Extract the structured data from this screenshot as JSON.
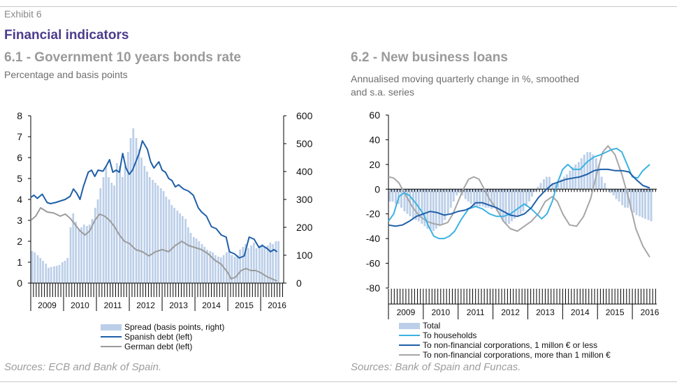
{
  "header": {
    "exhibit": "Exhibit 6",
    "title": "Financial indicators"
  },
  "colors": {
    "title": "#4b3c8c",
    "spread_bars": "#bccfe9",
    "spanish": "#1f5fa8",
    "german": "#9b9b9b",
    "households": "#3bb2e3",
    "nfc_small": "#1f5fa8",
    "nfc_large": "#a6a6a6"
  },
  "chart_data": [
    {
      "type": "line",
      "title": "6.1 - Government 10 years bonds rate",
      "subtitle": "Percentage and basis points",
      "years": [
        "2009",
        "2010",
        "2011",
        "2012",
        "2013",
        "2014",
        "2015",
        "2016"
      ],
      "x_range": [
        2009.0,
        2016.7
      ],
      "y_left": {
        "ticks": [
          "0",
          "1",
          "2",
          "3",
          "4",
          "5",
          "6",
          "7",
          "8"
        ],
        "ylim": [
          0,
          8
        ]
      },
      "y_right": {
        "ticks": [
          "0",
          "100",
          "200",
          "300",
          "400",
          "500",
          "600"
        ],
        "ylim": [
          0,
          600
        ]
      },
      "series": [
        {
          "name": "Spread (basis points, right)",
          "kind": "bar",
          "axis": "right",
          "x": [
            2009.0,
            2009.08,
            2009.17,
            2009.25,
            2009.33,
            2009.42,
            2009.5,
            2009.58,
            2009.67,
            2009.75,
            2009.83,
            2009.92,
            2010.0,
            2010.08,
            2010.17,
            2010.25,
            2010.33,
            2010.42,
            2010.5,
            2010.58,
            2010.67,
            2010.75,
            2010.83,
            2010.92,
            2011.0,
            2011.08,
            2011.17,
            2011.25,
            2011.33,
            2011.42,
            2011.5,
            2011.58,
            2011.67,
            2011.75,
            2011.83,
            2011.92,
            2012.0,
            2012.08,
            2012.17,
            2012.25,
            2012.33,
            2012.42,
            2012.5,
            2012.58,
            2012.67,
            2012.75,
            2012.83,
            2012.92,
            2013.0,
            2013.08,
            2013.17,
            2013.25,
            2013.33,
            2013.42,
            2013.5,
            2013.58,
            2013.67,
            2013.75,
            2013.83,
            2013.92,
            2014.0,
            2014.08,
            2014.17,
            2014.25,
            2014.33,
            2014.42,
            2014.5,
            2014.58,
            2014.67,
            2014.75,
            2014.83,
            2014.92,
            2015.0,
            2015.08,
            2015.17,
            2015.25,
            2015.33,
            2015.42,
            2015.5,
            2015.58,
            2015.67,
            2015.75,
            2015.83,
            2015.92,
            2016.0,
            2016.08,
            2016.17,
            2016.25,
            2016.33,
            2016.42,
            2016.5
          ],
          "values": [
            115,
            110,
            100,
            90,
            80,
            70,
            55,
            58,
            60,
            62,
            65,
            75,
            80,
            90,
            200,
            250,
            220,
            195,
            200,
            210,
            205,
            210,
            230,
            270,
            300,
            340,
            380,
            420,
            380,
            360,
            350,
            430,
            420,
            380,
            420,
            470,
            520,
            555,
            520,
            480,
            450,
            420,
            400,
            380,
            370,
            360,
            350,
            340,
            330,
            310,
            300,
            280,
            270,
            260,
            250,
            240,
            230,
            200,
            180,
            165,
            160,
            150,
            140,
            130,
            120,
            115,
            110,
            100,
            95,
            92,
            100,
            110,
            115,
            100,
            95,
            100,
            120,
            130,
            140,
            125,
            135,
            145,
            125,
            135,
            140,
            130,
            135,
            145,
            140,
            150,
            150
          ]
        },
        {
          "name": "Spanish debt (left)",
          "kind": "line",
          "axis": "left",
          "x": [
            2009.0,
            2009.1,
            2009.2,
            2009.35,
            2009.5,
            2009.6,
            2009.75,
            2009.95,
            2010.05,
            2010.2,
            2010.3,
            2010.4,
            2010.5,
            2010.6,
            2010.75,
            2010.85,
            2010.95,
            2011.05,
            2011.2,
            2011.3,
            2011.4,
            2011.5,
            2011.6,
            2011.7,
            2011.8,
            2011.9,
            2012.0,
            2012.1,
            2012.2,
            2012.3,
            2012.4,
            2012.55,
            2012.65,
            2012.75,
            2012.9,
            2013.0,
            2013.1,
            2013.2,
            2013.3,
            2013.4,
            2013.5,
            2013.65,
            2013.8,
            2013.95,
            2014.1,
            2014.2,
            2014.35,
            2014.5,
            2014.65,
            2014.8,
            2014.95,
            2015.05,
            2015.2,
            2015.35,
            2015.5,
            2015.65,
            2015.8,
            2015.95,
            2016.05,
            2016.2,
            2016.3,
            2016.4,
            2016.5
          ],
          "values": [
            4.1,
            4.2,
            4.05,
            4.25,
            3.85,
            3.8,
            3.85,
            3.95,
            4.0,
            4.15,
            4.5,
            4.3,
            4.0,
            4.6,
            5.3,
            5.4,
            5.1,
            5.4,
            5.35,
            5.6,
            5.9,
            5.3,
            5.4,
            5.3,
            6.2,
            5.5,
            5.2,
            5.4,
            5.8,
            6.2,
            6.8,
            6.4,
            5.8,
            5.5,
            5.8,
            5.4,
            5.3,
            5.0,
            4.9,
            4.6,
            4.7,
            4.5,
            4.4,
            4.2,
            3.6,
            3.4,
            3.2,
            2.7,
            2.6,
            2.3,
            2.2,
            1.5,
            1.4,
            1.2,
            1.3,
            2.2,
            2.1,
            1.7,
            1.8,
            1.65,
            1.5,
            1.6,
            1.5
          ]
        },
        {
          "name": "German debt (left)",
          "kind": "line",
          "axis": "left",
          "x": [
            2009.0,
            2009.15,
            2009.3,
            2009.5,
            2009.7,
            2009.9,
            2010.05,
            2010.2,
            2010.35,
            2010.5,
            2010.65,
            2010.8,
            2010.95,
            2011.1,
            2011.25,
            2011.4,
            2011.55,
            2011.7,
            2011.85,
            2012.0,
            2012.2,
            2012.4,
            2012.6,
            2012.8,
            2013.0,
            2013.2,
            2013.4,
            2013.6,
            2013.8,
            2014.0,
            2014.2,
            2014.4,
            2014.6,
            2014.8,
            2015.0,
            2015.1,
            2015.25,
            2015.4,
            2015.55,
            2015.7,
            2015.85,
            2016.0,
            2016.2,
            2016.35,
            2016.5
          ],
          "values": [
            3.0,
            3.2,
            3.6,
            3.4,
            3.35,
            3.2,
            3.3,
            3.1,
            2.8,
            2.5,
            2.3,
            2.5,
            3.0,
            3.3,
            3.2,
            3.0,
            2.7,
            2.3,
            2.0,
            1.9,
            1.6,
            1.5,
            1.3,
            1.5,
            1.6,
            1.5,
            1.8,
            2.0,
            1.8,
            1.7,
            1.6,
            1.4,
            1.1,
            0.9,
            0.5,
            0.2,
            0.3,
            0.6,
            0.7,
            0.6,
            0.6,
            0.5,
            0.3,
            0.2,
            0.1
          ]
        }
      ],
      "source": "Sources: ECB and Bank of Spain."
    },
    {
      "type": "line",
      "title": "6.2 - New business loans",
      "subtitle_lines": [
        "Annualised moving quarterly change in %, smoothed",
        "and s.a. series"
      ],
      "years": [
        "2009",
        "2010",
        "2011",
        "2012",
        "2013",
        "2014",
        "2015",
        "2016"
      ],
      "x_range": [
        2009.0,
        2016.7
      ],
      "y": {
        "ticks": [
          "60",
          "40",
          "20",
          "0",
          "-20",
          "-40",
          "-60",
          "-80"
        ],
        "ylim": [
          -80,
          60
        ]
      },
      "series": [
        {
          "name": "Total",
          "kind": "bar",
          "x": [
            2009.0,
            2009.08,
            2009.17,
            2009.25,
            2009.33,
            2009.42,
            2009.5,
            2009.58,
            2009.67,
            2009.75,
            2009.83,
            2009.92,
            2010.0,
            2010.08,
            2010.17,
            2010.25,
            2010.33,
            2010.42,
            2010.5,
            2010.58,
            2010.67,
            2010.75,
            2010.83,
            2010.92,
            2011.0,
            2011.08,
            2011.17,
            2011.25,
            2011.33,
            2011.42,
            2011.5,
            2011.58,
            2011.67,
            2011.75,
            2011.83,
            2011.92,
            2012.0,
            2012.08,
            2012.17,
            2012.25,
            2012.33,
            2012.42,
            2012.5,
            2012.58,
            2012.67,
            2012.75,
            2012.83,
            2012.92,
            2013.0,
            2013.08,
            2013.17,
            2013.25,
            2013.33,
            2013.42,
            2013.5,
            2013.58,
            2013.67,
            2013.75,
            2013.83,
            2013.92,
            2014.0,
            2014.08,
            2014.17,
            2014.25,
            2014.33,
            2014.42,
            2014.5,
            2014.58,
            2014.67,
            2014.75,
            2014.83,
            2014.92,
            2015.0,
            2015.08,
            2015.17,
            2015.25,
            2015.33,
            2015.42,
            2015.5,
            2015.58,
            2015.67,
            2015.75,
            2015.83,
            2015.92,
            2016.0,
            2016.08,
            2016.17,
            2016.25,
            2016.33,
            2016.42,
            2016.5
          ],
          "values": [
            -10,
            -10,
            -12,
            -12,
            -15,
            -18,
            -20,
            -22,
            -24,
            -25,
            -26,
            -28,
            -30,
            -32,
            -33,
            -34,
            -32,
            -30,
            -28,
            -25,
            -20,
            -15,
            -10,
            -5,
            -3,
            -5,
            -8,
            -10,
            -12,
            -14,
            -14,
            -14,
            -14,
            -15,
            -15,
            -16,
            -15,
            -18,
            -22,
            -26,
            -28,
            -28,
            -26,
            -24,
            -22,
            -20,
            -18,
            -14,
            -10,
            -6,
            -2,
            2,
            5,
            8,
            10,
            10,
            5,
            4,
            5,
            8,
            10,
            12,
            15,
            18,
            20,
            22,
            25,
            28,
            30,
            30,
            28,
            25,
            20,
            10,
            5,
            0,
            -3,
            -5,
            -8,
            -10,
            -13,
            -15,
            -15,
            -17,
            -19,
            -21,
            -22,
            -23,
            -24,
            -25,
            -26
          ]
        },
        {
          "name": "To households",
          "kind": "line",
          "x": [
            2009.0,
            2009.15,
            2009.3,
            2009.45,
            2009.6,
            2009.8,
            2010.0,
            2010.15,
            2010.3,
            2010.45,
            2010.6,
            2010.75,
            2010.9,
            2011.1,
            2011.3,
            2011.5,
            2011.7,
            2011.9,
            2012.1,
            2012.3,
            2012.5,
            2012.7,
            2012.9,
            2013.1,
            2013.25,
            2013.4,
            2013.55,
            2013.7,
            2013.85,
            2014.0,
            2014.15,
            2014.3,
            2014.5,
            2014.7,
            2014.9,
            2015.1,
            2015.25,
            2015.4,
            2015.55,
            2015.7,
            2015.85,
            2016.0,
            2016.15,
            2016.3,
            2016.5
          ],
          "values": [
            -26,
            -20,
            -6,
            -3,
            -5,
            -12,
            -20,
            -30,
            -38,
            -40,
            -40,
            -38,
            -34,
            -24,
            -16,
            -14,
            -16,
            -20,
            -22,
            -22,
            -20,
            -16,
            -12,
            -16,
            -20,
            -24,
            -20,
            -10,
            5,
            16,
            20,
            16,
            16,
            22,
            26,
            28,
            30,
            32,
            33,
            30,
            20,
            10,
            9,
            15,
            20
          ]
        },
        {
          "name": "To non-financial corporations, 1 millon € or less",
          "kind": "line",
          "x": [
            2009.0,
            2009.2,
            2009.4,
            2009.6,
            2009.8,
            2010.0,
            2010.2,
            2010.4,
            2010.6,
            2010.8,
            2011.0,
            2011.2,
            2011.35,
            2011.5,
            2011.7,
            2011.9,
            2012.1,
            2012.3,
            2012.5,
            2012.7,
            2012.9,
            2013.1,
            2013.3,
            2013.5,
            2013.7,
            2013.9,
            2014.1,
            2014.3,
            2014.5,
            2014.7,
            2014.9,
            2015.1,
            2015.3,
            2015.5,
            2015.7,
            2015.9,
            2016.1,
            2016.3,
            2016.5
          ],
          "values": [
            -29,
            -30,
            -29,
            -26,
            -22,
            -20,
            -18,
            -19,
            -21,
            -20,
            -18,
            -17,
            -15,
            -11,
            -11,
            -13,
            -15,
            -18,
            -21,
            -22,
            -20,
            -15,
            -7,
            -1,
            4,
            6,
            8,
            9,
            10,
            12,
            15,
            16,
            16,
            15,
            15,
            14,
            8,
            3,
            1
          ]
        },
        {
          "name": "To non-financial corporations, more than 1 millon €",
          "kind": "line",
          "x": [
            2009.0,
            2009.15,
            2009.3,
            2009.5,
            2009.7,
            2009.9,
            2010.1,
            2010.3,
            2010.5,
            2010.7,
            2010.85,
            2011.0,
            2011.15,
            2011.3,
            2011.45,
            2011.6,
            2011.75,
            2011.9,
            2012.1,
            2012.3,
            2012.5,
            2012.7,
            2012.9,
            2013.1,
            2013.3,
            2013.5,
            2013.7,
            2013.85,
            2014.0,
            2014.2,
            2014.4,
            2014.6,
            2014.8,
            2015.0,
            2015.15,
            2015.3,
            2015.5,
            2015.7,
            2015.9,
            2016.1,
            2016.3,
            2016.5
          ],
          "values": [
            10,
            9,
            5,
            -5,
            -15,
            -22,
            -26,
            -28,
            -29,
            -27,
            -20,
            -10,
            0,
            8,
            10,
            8,
            0,
            -8,
            -16,
            -26,
            -32,
            -34,
            -30,
            -26,
            -20,
            -10,
            -6,
            -10,
            -20,
            -29,
            -30,
            -22,
            -8,
            15,
            30,
            35,
            28,
            12,
            -8,
            -32,
            -46,
            -55
          ]
        }
      ],
      "source": "Sources: Bank of Spain and Funcas."
    }
  ]
}
